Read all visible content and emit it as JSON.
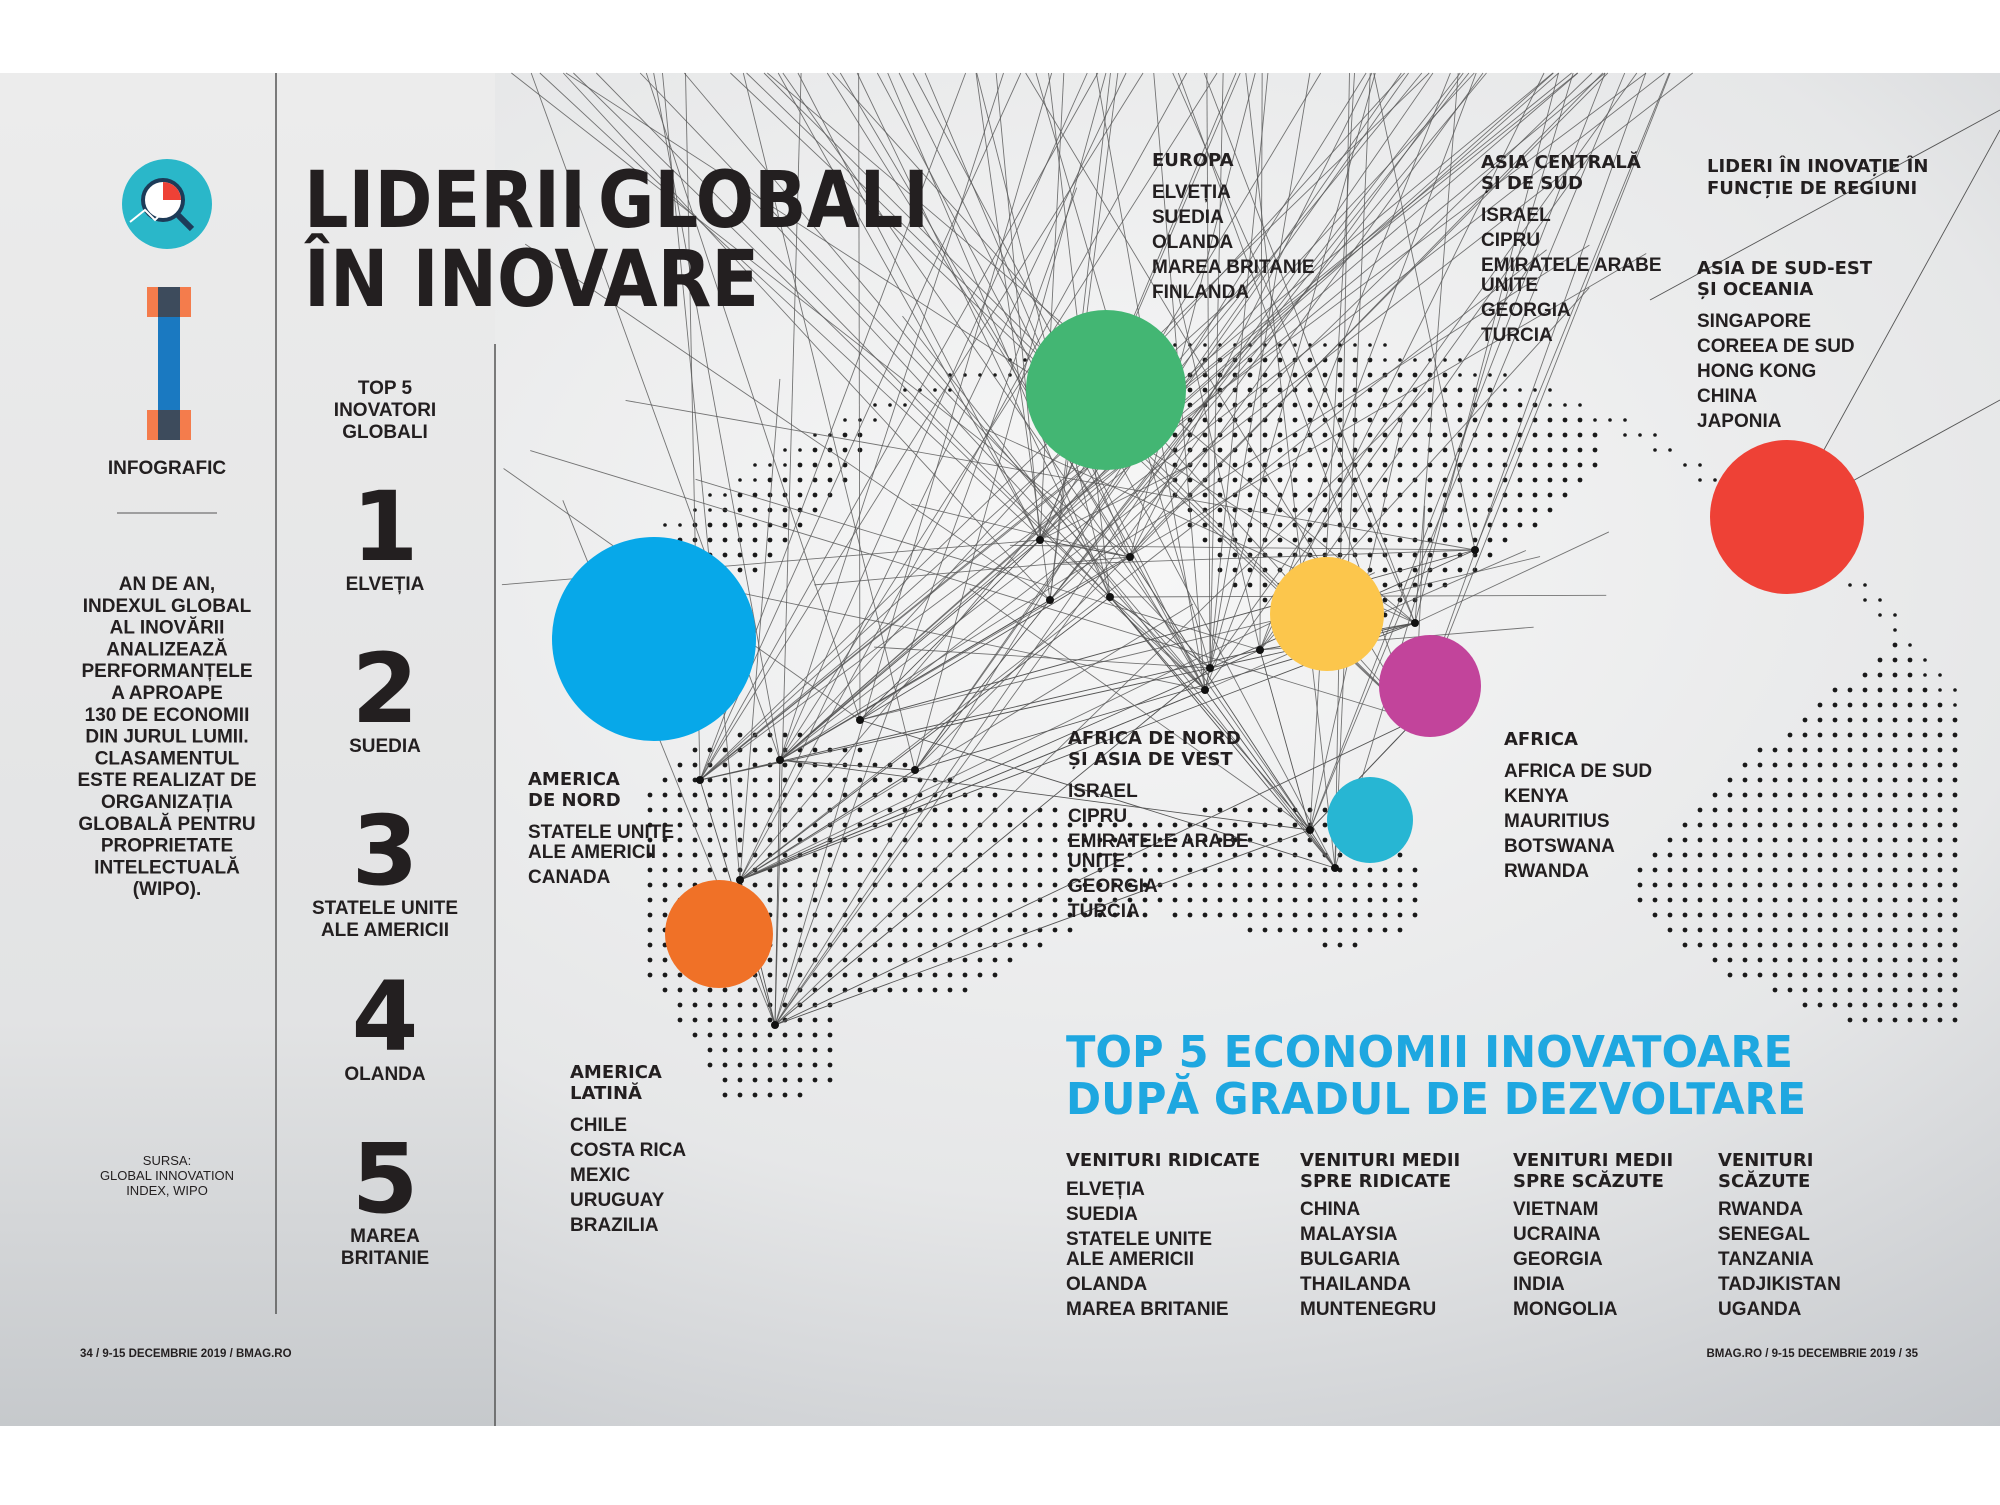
{
  "sidebar": {
    "label": "INFOGRAFIC",
    "intro": [
      "AN DE AN,",
      "INDEXUL GLOBAL",
      "AL INOVĂRII",
      "ANALIZEAZĂ",
      "PERFORMANȚELE",
      "A APROAPE",
      "130 DE ECONOMII",
      "DIN JURUL LUMII.",
      "CLASAMENTUL",
      "ESTE REALIZAT DE",
      "ORGANIZAȚIA",
      "GLOBALĂ PENTRU",
      "PROPRIETATE",
      "INTELECTUALĂ",
      "(WIPO)."
    ],
    "source": [
      "SURSA:",
      "GLOBAL INNOVATION",
      "INDEX, WIPO"
    ]
  },
  "title": {
    "words": [
      "LIDERII",
      "GLOBALI",
      "ÎN INOVARE"
    ]
  },
  "ranking": {
    "title": [
      "TOP 5",
      "INOVATORI",
      "GLOBALI"
    ],
    "items": [
      {
        "rank": 1,
        "name": [
          "ELVEȚIA"
        ]
      },
      {
        "rank": 2,
        "name": [
          "SUEDIA"
        ]
      },
      {
        "rank": 3,
        "name": [
          "STATELE UNITE",
          "ALE AMERICII"
        ]
      },
      {
        "rank": 4,
        "name": [
          "OLANDA"
        ]
      },
      {
        "rank": 5,
        "name": [
          "MAREA",
          "BRITANIE"
        ]
      }
    ]
  },
  "legend_title": [
    "LIDERI ÎN INOVAȚIE ÎN",
    "FUNCȚIE DE REGIUNI"
  ],
  "regions": [
    {
      "name": [
        "EUROPA"
      ],
      "color": "#43b673",
      "countries": [
        "ELVEȚIA",
        "SUEDIA",
        "OLANDA",
        "MAREA BRITANIE",
        "FINLANDA"
      ]
    },
    {
      "name": [
        "ASIA CENTRALĂ",
        "ȘI DE SUD"
      ],
      "color": "#27b6d3",
      "countries": [
        "ISRAEL",
        "CIPRU",
        [
          "EMIRATELE ARABE",
          "UNITE"
        ],
        "GEORGIA",
        "TURCIA"
      ]
    },
    {
      "name": [
        "ASIA DE SUD-EST",
        "ȘI OCEANIA"
      ],
      "color": "#ee4136",
      "countries": [
        "SINGAPORE",
        "COREEA DE SUD",
        "HONG KONG",
        "CHINA",
        "JAPONIA"
      ]
    },
    {
      "name": [
        "AMERICA",
        "DE NORD"
      ],
      "color": "#07a8e9",
      "countries": [
        [
          "STATELE UNITE",
          "ALE AMERICII"
        ],
        "CANADA"
      ]
    },
    {
      "name": [
        "AFRICA DE NORD",
        "ȘI ASIA DE VEST"
      ],
      "color": "#fcc64c",
      "countries": [
        "ISRAEL",
        "CIPRU",
        [
          "EMIRATELE ARABE",
          "UNITE"
        ],
        "GEORGIA",
        "TURCIA"
      ]
    },
    {
      "name": [
        "AFRICA"
      ],
      "color": "#c2449b",
      "countries": [
        "AFRICA DE SUD",
        "KENYA",
        "MAURITIUS",
        "BOTSWANA",
        "RWANDA"
      ]
    },
    {
      "name": [
        "AMERICA",
        "LATINĂ"
      ],
      "color": "#f07127",
      "countries": [
        "CHILE",
        "COSTA RICA",
        "MEXIC",
        "URUGUAY",
        "BRAZILIA"
      ]
    }
  ],
  "development": {
    "title": [
      "TOP 5 ECONOMII INOVATOARE",
      "DUPĂ GRADUL DE DEZVOLTARE"
    ],
    "columns": [
      {
        "heading": [
          "VENITURI RIDICATE"
        ],
        "countries": [
          "ELVEȚIA",
          "SUEDIA",
          [
            "STATELE UNITE",
            "ALE AMERICII"
          ],
          "OLANDA",
          "MAREA BRITANIE"
        ]
      },
      {
        "heading": [
          "VENITURI MEDII",
          "SPRE RIDICATE"
        ],
        "countries": [
          "CHINA",
          "MALAYSIA",
          "BULGARIA",
          "THAILANDA",
          "MUNTENEGRU"
        ]
      },
      {
        "heading": [
          "VENITURI MEDII",
          "SPRE SCĂZUTE"
        ],
        "countries": [
          "VIETNAM",
          "UCRAINA",
          "GEORGIA",
          "INDIA",
          "MONGOLIA"
        ]
      },
      {
        "heading": [
          "VENITURI",
          "SCĂZUTE"
        ],
        "countries": [
          "RWANDA",
          "SENEGAL",
          "TANZANIA",
          "TADJIKISTAN",
          "UGANDA"
        ]
      }
    ]
  },
  "footer": {
    "left": "34   /   9-15 DECEMBRIE 2019   /   BMAG.RO",
    "right": "BMAG.RO   /   9-15 DECEMBRIE 2019   /   35"
  }
}
